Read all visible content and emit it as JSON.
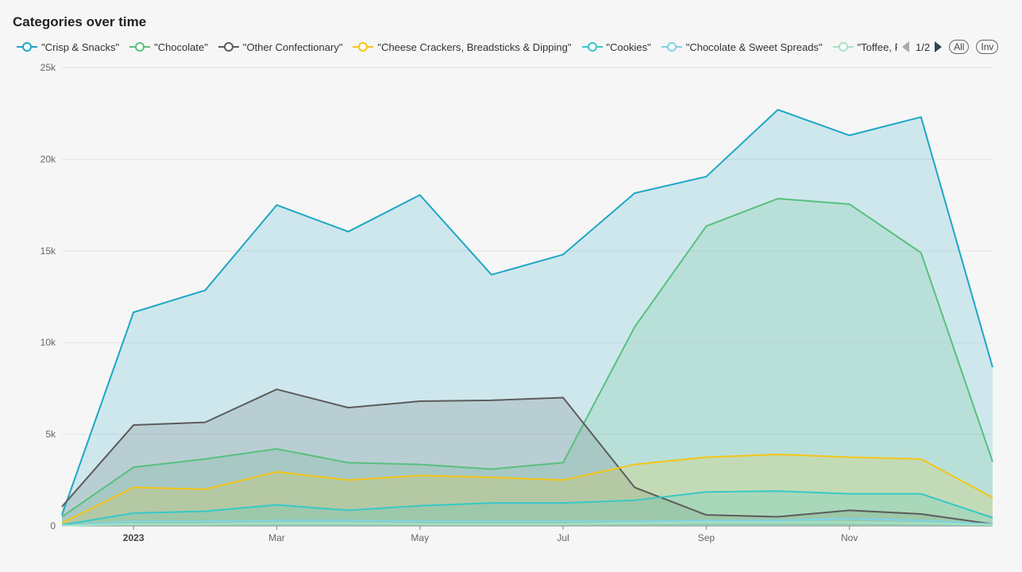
{
  "title": "Categories over time",
  "legend": {
    "page_indicator": "1/2",
    "all_button": "All",
    "inv_button": "Inv",
    "items": [
      {
        "label": "\"Crisp & Snacks\"",
        "color": "#1ea7c5"
      },
      {
        "label": "\"Chocolate\"",
        "color": "#58c07e"
      },
      {
        "label": "\"Other Confectionary\"",
        "color": "#5c5c5c"
      },
      {
        "label": "\"Cheese Crackers, Breadsticks & Dipping\"",
        "color": "#f5c518"
      },
      {
        "label": "\"Cookies\"",
        "color": "#37c8c8"
      },
      {
        "label": "\"Chocolate & Sweet Spreads\"",
        "color": "#7fd3e6"
      },
      {
        "label": "\"Toffee, Fudg",
        "color": "#a6e3c4"
      }
    ]
  },
  "chart_data": {
    "type": "area",
    "title": "Categories over time",
    "x": [
      "2022-12",
      "2023-01",
      "2023-02",
      "2023-03",
      "2023-04",
      "2023-05",
      "2023-06",
      "2023-07",
      "2023-08",
      "2023-09",
      "2023-10",
      "2023-11",
      "2023-12",
      "2024-01"
    ],
    "x_tick_labels": [
      {
        "x": "2023-01",
        "label": "2023"
      },
      {
        "x": "2023-03",
        "label": "Mar"
      },
      {
        "x": "2023-05",
        "label": "May"
      },
      {
        "x": "2023-07",
        "label": "Jul"
      },
      {
        "x": "2023-09",
        "label": "Sep"
      },
      {
        "x": "2023-11",
        "label": "Nov"
      }
    ],
    "y_ticks": [
      "0",
      "5k",
      "10k",
      "15k",
      "20k",
      "25k"
    ],
    "ylim": [
      0,
      25000
    ],
    "grid": true,
    "legend_position": "top",
    "series": [
      {
        "name": "\"Crisp & Snacks\"",
        "color": "#1ea7c5",
        "values": [
          600,
          11650,
          12850,
          17500,
          16050,
          18050,
          13700,
          14800,
          18150,
          19050,
          22700,
          21300,
          22300,
          8650
        ]
      },
      {
        "name": "\"Chocolate\"",
        "color": "#58c07e",
        "values": [
          500,
          3200,
          3650,
          4200,
          3450,
          3350,
          3100,
          3450,
          10850,
          16350,
          17850,
          17550,
          14900,
          3500
        ]
      },
      {
        "name": "\"Other Confectionary\"",
        "color": "#5c5c5c",
        "values": [
          1050,
          5500,
          5650,
          7450,
          6450,
          6800,
          6850,
          7000,
          2100,
          600,
          500,
          850,
          650,
          100
        ]
      },
      {
        "name": "\"Cheese Crackers, Breadsticks & Dipping\"",
        "color": "#f5c518",
        "values": [
          150,
          2100,
          2000,
          2950,
          2500,
          2750,
          2650,
          2500,
          3350,
          3750,
          3900,
          3750,
          3650,
          1550
        ]
      },
      {
        "name": "\"Cookies\"",
        "color": "#37c8c8",
        "values": [
          50,
          700,
          800,
          1150,
          850,
          1100,
          1250,
          1250,
          1400,
          1850,
          1900,
          1750,
          1750,
          450
        ]
      },
      {
        "name": "\"Chocolate & Sweet Spreads\"",
        "color": "#7fd3e6",
        "values": [
          20,
          250,
          250,
          300,
          300,
          250,
          250,
          250,
          250,
          300,
          300,
          400,
          300,
          100
        ]
      },
      {
        "name": "\"Toffee, Fudg",
        "color": "#a6e3c4",
        "values": [
          10,
          100,
          100,
          150,
          150,
          100,
          100,
          100,
          150,
          200,
          200,
          200,
          150,
          50
        ]
      }
    ]
  }
}
